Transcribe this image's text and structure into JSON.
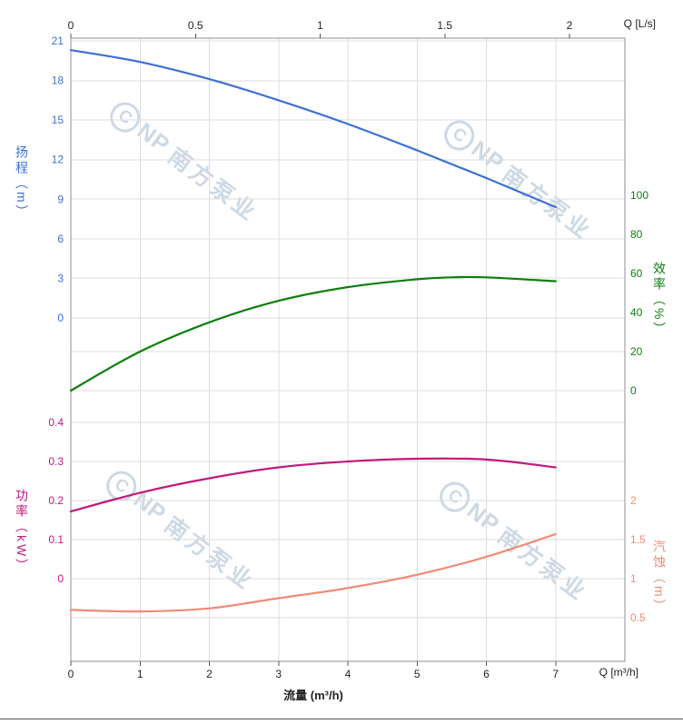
{
  "watermark": {
    "logo_letter": "C",
    "logo_rest": "NP",
    "brand": "南方泵业",
    "color": "#cdd9e5"
  },
  "chart_data": {
    "type": "line",
    "title": "",
    "legend": false,
    "grid": true,
    "plot_bg": "#ffffff",
    "x_bottom": {
      "title": "流量 (m³/h)",
      "unit": "Q [m³/h]",
      "ticks": [
        "0",
        "1",
        "2",
        "3",
        "4",
        "5",
        "6",
        "7"
      ],
      "tick_values": [
        0,
        1,
        2,
        3,
        4,
        5,
        6,
        7
      ],
      "range": [
        0,
        8
      ]
    },
    "x_top": {
      "unit": "Q [L/s]",
      "ticks": [
        "0",
        "0.5",
        "1",
        "1.5",
        "2"
      ],
      "tick_values": [
        0,
        0.5,
        1,
        1.5,
        2
      ]
    },
    "axes": [
      {
        "id": "head",
        "title": "扬程（m）",
        "color": "#3c6fd6",
        "side": "left",
        "range": [
          0,
          21
        ],
        "ticks": [
          "21",
          "18",
          "15",
          "12",
          "9",
          "6",
          "3",
          "0"
        ],
        "tick_values": [
          21,
          18,
          15,
          12,
          9,
          6,
          3,
          0
        ]
      },
      {
        "id": "efficiency",
        "title": "效率（%）",
        "color": "#0b7e0b",
        "side": "right",
        "range": [
          0,
          100
        ],
        "ticks": [
          "100",
          "80",
          "60",
          "40",
          "20",
          "0"
        ],
        "tick_values": [
          100,
          80,
          60,
          40,
          20,
          0
        ]
      },
      {
        "id": "power",
        "title": "功率（kW）",
        "color": "#c2187e",
        "side": "left",
        "range": [
          0,
          0.4
        ],
        "ticks": [
          "0.4",
          "0.3",
          "0.2",
          "0.1",
          "0"
        ],
        "tick_values": [
          0.4,
          0.3,
          0.2,
          0.1,
          0
        ]
      },
      {
        "id": "npsh",
        "title": "汽蚀（m）",
        "color": "#f08a75",
        "side": "right",
        "range": [
          0.5,
          2
        ],
        "ticks": [
          "2",
          "1.5",
          "1",
          "0.5"
        ],
        "tick_values": [
          2,
          1.5,
          1,
          0.5
        ]
      }
    ],
    "series": [
      {
        "name": "head",
        "axis": "head",
        "color": "#3c6fd6",
        "x": [
          0,
          1,
          2,
          3,
          4,
          5,
          6,
          7
        ],
        "y": [
          20.3,
          19.4,
          18.1,
          16.5,
          14.7,
          12.7,
          10.6,
          8.4
        ]
      },
      {
        "name": "efficiency",
        "axis": "efficiency",
        "color": "#0b7e0b",
        "x": [
          0,
          1,
          2,
          3,
          4,
          5,
          5.5,
          6,
          7
        ],
        "y": [
          0,
          20,
          35,
          46,
          53,
          57,
          58,
          58,
          56
        ]
      },
      {
        "name": "power",
        "axis": "power",
        "color": "#c2187e",
        "x": [
          0,
          1,
          2,
          3,
          4,
          5,
          6,
          7
        ],
        "y": [
          0.172,
          0.22,
          0.257,
          0.285,
          0.3,
          0.307,
          0.305,
          0.285
        ]
      },
      {
        "name": "npsh",
        "axis": "npsh",
        "color": "#f08a75",
        "x": [
          0,
          1,
          2,
          3,
          4,
          5,
          6,
          7
        ],
        "y": [
          0.6,
          0.58,
          0.62,
          0.75,
          0.88,
          1.05,
          1.28,
          1.57
        ]
      }
    ]
  }
}
